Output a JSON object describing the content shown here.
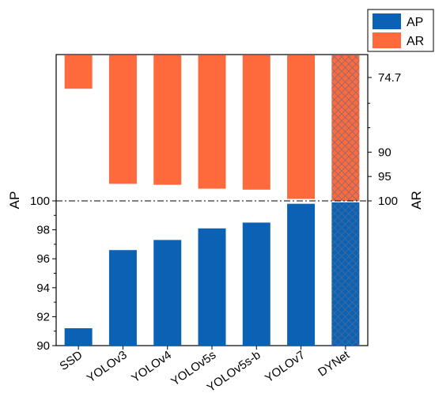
{
  "chart_data": {
    "type": "bar",
    "categories": [
      "SSD",
      "YOLOv3",
      "YOLOv4",
      "YOLOv5s",
      "YOLOv5s-b",
      "YOLOv7",
      "DYNet"
    ],
    "series": [
      {
        "name": "AP",
        "values": [
          91.2,
          96.6,
          97.3,
          98.1,
          98.5,
          99.8,
          99.9
        ],
        "color": "#0b62b5",
        "axis": "left"
      },
      {
        "name": "AR",
        "values": [
          77.0,
          96.5,
          96.7,
          97.5,
          97.7,
          99.6,
          100
        ],
        "color": "#ff6a3d",
        "axis": "right"
      }
    ],
    "hatched_category": "DYNet",
    "left_axis": {
      "label": "AP",
      "range": [
        90,
        100
      ],
      "ticks": [
        90,
        92,
        94,
        96,
        98,
        100
      ],
      "tick_labels": [
        "90",
        "92",
        "94",
        "96",
        "98",
        "100"
      ]
    },
    "right_axis": {
      "label": "AR",
      "range": [
        70,
        100
      ],
      "ticks": [
        74.7,
        90,
        95,
        100
      ],
      "tick_labels": [
        "74.7",
        "90",
        "95",
        "100"
      ],
      "inverted": true
    },
    "reference_line": {
      "ap_value": 100,
      "ar_value": 100,
      "style": "dash-dot"
    },
    "legend": {
      "position": "top-right",
      "entries": [
        "AP",
        "AR"
      ]
    }
  }
}
